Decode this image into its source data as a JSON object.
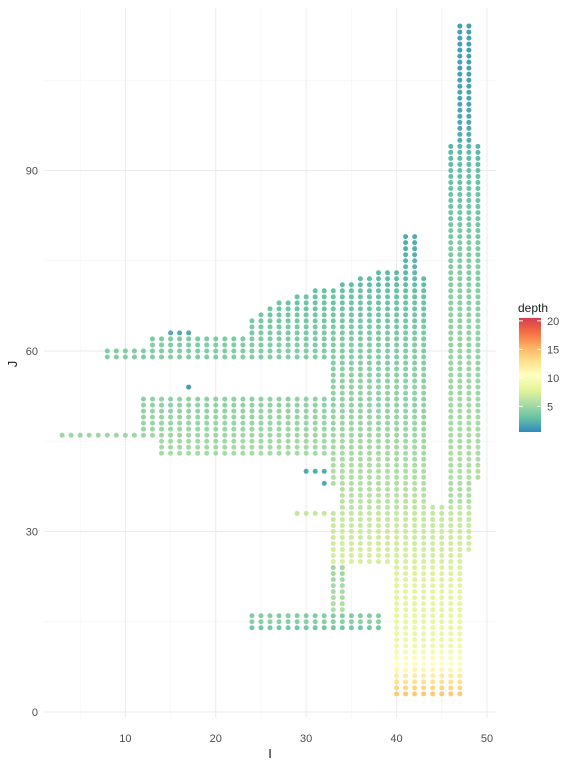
{
  "chart_data": {
    "type": "scatter",
    "title": "",
    "xlabel": "I",
    "ylabel": "J",
    "xlim": [
      1,
      51
    ],
    "ylim": [
      -1,
      117
    ],
    "xticks": [
      10,
      20,
      30,
      40,
      50
    ],
    "yticks": [
      0,
      30,
      60,
      90
    ],
    "grid": true,
    "legend": {
      "title": "depth",
      "position": "right",
      "ticks": [
        5,
        10,
        15,
        20
      ],
      "range": [
        0.5,
        20.5
      ],
      "palette": [
        "#3288BD",
        "#66C2A5",
        "#ABDDA4",
        "#E6F598",
        "#FFFFBF",
        "#FEE08B",
        "#FDAE61",
        "#F46D43",
        "#D53E4F"
      ]
    },
    "rows": [
      [
        114,
        47,
        48,
        1.5
      ],
      [
        113,
        47,
        48,
        1.5
      ],
      [
        112,
        47,
        48,
        1.5
      ],
      [
        111,
        47,
        48,
        1.5
      ],
      [
        110,
        47,
        48,
        1.5
      ],
      [
        109,
        47,
        48,
        1.5
      ],
      [
        108,
        47,
        48,
        1.5
      ],
      [
        107,
        47,
        48,
        1.5
      ],
      [
        106,
        47,
        48,
        1.6
      ],
      [
        105,
        47,
        48,
        1.6
      ],
      [
        104,
        47,
        48,
        1.6
      ],
      [
        103,
        47,
        48,
        1.7
      ],
      [
        102,
        47,
        48,
        1.7
      ],
      [
        101,
        47,
        48,
        1.7
      ],
      [
        100,
        47,
        48,
        1.8
      ],
      [
        99,
        47,
        48,
        1.8
      ],
      [
        98,
        47,
        48,
        1.9
      ],
      [
        97,
        47,
        48,
        1.9
      ],
      [
        96,
        47,
        48,
        2.0
      ],
      [
        95,
        47,
        48,
        2.0
      ],
      [
        94,
        46,
        49,
        2.5
      ],
      [
        93,
        46,
        49,
        2.6
      ],
      [
        92,
        46,
        49,
        2.7
      ],
      [
        91,
        46,
        49,
        2.8
      ],
      [
        90,
        46,
        49,
        2.9
      ],
      [
        89,
        46,
        49,
        3.0
      ],
      [
        88,
        46,
        49,
        3.0
      ],
      [
        87,
        46,
        49,
        3.1
      ],
      [
        86,
        46,
        49,
        3.2
      ],
      [
        85,
        46,
        49,
        3.2
      ],
      [
        84,
        46,
        49,
        3.3
      ],
      [
        83,
        46,
        49,
        3.4
      ],
      [
        82,
        46,
        49,
        3.4
      ],
      [
        81,
        46,
        49,
        3.5
      ],
      [
        80,
        46,
        49,
        3.6
      ],
      [
        79,
        41,
        42,
        2.0
      ],
      [
        79,
        46,
        49,
        3.6
      ],
      [
        78,
        41,
        42,
        2.1
      ],
      [
        78,
        46,
        49,
        3.7
      ],
      [
        77,
        41,
        42,
        2.2
      ],
      [
        77,
        46,
        49,
        3.8
      ],
      [
        76,
        41,
        42,
        2.3
      ],
      [
        76,
        46,
        49,
        3.8
      ],
      [
        75,
        41,
        42,
        2.4
      ],
      [
        75,
        46,
        49,
        3.9
      ],
      [
        74,
        41,
        42,
        2.5
      ],
      [
        74,
        46,
        49,
        3.9
      ],
      [
        73,
        38,
        42,
        2.6
      ],
      [
        73,
        46,
        49,
        4.0
      ],
      [
        72,
        36,
        43,
        2.7
      ],
      [
        72,
        46,
        49,
        4.0
      ],
      [
        71,
        34,
        43,
        2.8
      ],
      [
        71,
        46,
        49,
        4.1
      ],
      [
        70,
        31,
        43,
        3.0
      ],
      [
        70,
        46,
        49,
        4.2
      ],
      [
        69,
        29,
        43,
        3.1
      ],
      [
        69,
        46,
        49,
        4.2
      ],
      [
        68,
        27,
        43,
        3.2
      ],
      [
        68,
        46,
        49,
        4.3
      ],
      [
        67,
        26,
        43,
        3.3
      ],
      [
        67,
        46,
        49,
        4.3
      ],
      [
        66,
        25,
        43,
        3.4
      ],
      [
        66,
        46,
        49,
        4.4
      ],
      [
        65,
        24,
        43,
        3.5
      ],
      [
        65,
        46,
        49,
        4.4
      ],
      [
        64,
        24,
        43,
        3.6
      ],
      [
        64,
        46,
        49,
        4.5
      ],
      [
        63,
        15,
        17,
        2.0
      ],
      [
        63,
        24,
        43,
        3.7
      ],
      [
        63,
        46,
        49,
        4.5
      ],
      [
        62,
        13,
        43,
        3.8
      ],
      [
        62,
        46,
        49,
        4.6
      ],
      [
        61,
        13,
        43,
        3.9
      ],
      [
        61,
        46,
        49,
        4.6
      ],
      [
        60,
        8,
        43,
        3.9
      ],
      [
        60,
        46,
        49,
        4.7
      ],
      [
        59,
        8,
        43,
        4.0
      ],
      [
        59,
        46,
        49,
        4.7
      ],
      [
        58,
        33,
        43,
        4.1
      ],
      [
        58,
        46,
        49,
        4.8
      ],
      [
        57,
        33,
        43,
        4.2
      ],
      [
        57,
        46,
        49,
        4.8
      ],
      [
        56,
        33,
        43,
        4.3
      ],
      [
        56,
        46,
        49,
        4.9
      ],
      [
        55,
        33,
        43,
        4.4
      ],
      [
        55,
        46,
        49,
        4.9
      ],
      [
        54,
        17,
        17,
        1.5
      ],
      [
        54,
        33,
        43,
        4.5
      ],
      [
        54,
        46,
        49,
        5.0
      ],
      [
        53,
        33,
        43,
        4.6
      ],
      [
        53,
        46,
        49,
        5.0
      ],
      [
        52,
        12,
        43,
        4.4
      ],
      [
        52,
        46,
        49,
        5.1
      ],
      [
        51,
        12,
        43,
        4.5
      ],
      [
        51,
        46,
        49,
        5.1
      ],
      [
        50,
        12,
        43,
        4.6
      ],
      [
        50,
        46,
        49,
        5.2
      ],
      [
        49,
        12,
        43,
        4.7
      ],
      [
        49,
        46,
        49,
        5.2
      ],
      [
        48,
        12,
        43,
        4.8
      ],
      [
        48,
        46,
        49,
        5.3
      ],
      [
        47,
        12,
        43,
        4.9
      ],
      [
        47,
        46,
        49,
        5.3
      ],
      [
        46,
        3,
        43,
        5.0
      ],
      [
        46,
        46,
        49,
        5.4
      ],
      [
        45,
        14,
        43,
        5.1
      ],
      [
        45,
        46,
        49,
        5.4
      ],
      [
        44,
        14,
        43,
        5.2
      ],
      [
        44,
        46,
        49,
        5.5
      ],
      [
        43,
        14,
        43,
        5.3
      ],
      [
        43,
        46,
        49,
        5.5
      ],
      [
        42,
        33,
        43,
        5.4
      ],
      [
        42,
        46,
        49,
        5.6
      ],
      [
        41,
        33,
        43,
        5.5
      ],
      [
        41,
        46,
        49,
        5.6
      ],
      [
        40,
        30,
        32,
        2.0
      ],
      [
        40,
        33,
        43,
        5.6
      ],
      [
        40,
        46,
        49,
        5.7
      ],
      [
        39,
        33,
        43,
        5.7
      ],
      [
        39,
        46,
        49,
        5.7
      ],
      [
        38,
        32,
        32,
        2.0
      ],
      [
        38,
        33,
        43,
        5.8
      ],
      [
        38,
        46,
        48,
        5.5
      ],
      [
        37,
        34,
        43,
        5.9
      ],
      [
        37,
        46,
        48,
        5.5
      ],
      [
        36,
        34,
        43,
        6.0
      ],
      [
        36,
        46,
        48,
        5.6
      ],
      [
        35,
        34,
        43,
        6.1
      ],
      [
        35,
        46,
        48,
        5.6
      ],
      [
        34,
        34,
        42,
        6.2
      ],
      [
        34,
        43,
        48,
        6.5
      ],
      [
        33,
        29,
        48,
        6.6
      ],
      [
        32,
        33,
        48,
        6.7
      ],
      [
        31,
        33,
        48,
        6.8
      ],
      [
        30,
        33,
        48,
        6.9
      ],
      [
        29,
        33,
        48,
        7.0
      ],
      [
        28,
        33,
        48,
        7.1
      ],
      [
        27,
        33,
        48,
        7.2
      ],
      [
        26,
        33,
        47,
        7.3
      ],
      [
        25,
        33,
        47,
        7.4
      ],
      [
        24,
        33,
        34,
        5.0
      ],
      [
        24,
        40,
        47,
        7.6
      ],
      [
        23,
        33,
        34,
        5.1
      ],
      [
        23,
        40,
        47,
        7.7
      ],
      [
        22,
        33,
        34,
        5.2
      ],
      [
        22,
        40,
        47,
        7.8
      ],
      [
        21,
        33,
        34,
        5.3
      ],
      [
        21,
        40,
        47,
        7.9
      ],
      [
        20,
        33,
        34,
        5.4
      ],
      [
        20,
        40,
        47,
        8.0
      ],
      [
        19,
        33,
        34,
        5.5
      ],
      [
        19,
        40,
        47,
        8.1
      ],
      [
        18,
        33,
        34,
        5.6
      ],
      [
        18,
        40,
        47,
        8.2
      ],
      [
        17,
        33,
        34,
        5.7
      ],
      [
        17,
        40,
        47,
        8.3
      ],
      [
        16,
        24,
        38,
        4.0
      ],
      [
        16,
        40,
        47,
        8.4
      ],
      [
        15,
        24,
        38,
        4.2
      ],
      [
        15,
        40,
        47,
        8.5
      ],
      [
        14,
        24,
        38,
        3.5
      ],
      [
        14,
        40,
        47,
        8.6
      ],
      [
        13,
        40,
        47,
        8.7
      ],
      [
        12,
        40,
        47,
        8.8
      ],
      [
        11,
        40,
        47,
        9.0
      ],
      [
        10,
        40,
        47,
        9.4
      ],
      [
        9,
        40,
        47,
        10.0
      ],
      [
        8,
        40,
        47,
        10.6
      ],
      [
        7,
        40,
        47,
        11.3
      ],
      [
        6,
        40,
        47,
        12.0
      ],
      [
        5,
        40,
        47,
        12.8
      ],
      [
        4,
        40,
        47,
        13.5
      ],
      [
        3,
        40,
        47,
        14.2
      ]
    ]
  }
}
